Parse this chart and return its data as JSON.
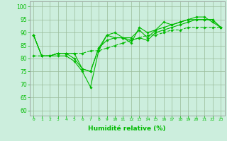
{
  "background_color": "#cceedd",
  "grid_color": "#99bb99",
  "line_color": "#00bb00",
  "xlabel": "Humidité relative (%)",
  "xlabel_fontsize": 6.5,
  "ylabel_ticks": [
    60,
    65,
    70,
    75,
    80,
    85,
    90,
    95,
    100
  ],
  "xlim": [
    -0.5,
    23.5
  ],
  "ylim": [
    58,
    102
  ],
  "xtick_labels": [
    "0",
    "1",
    "2",
    "3",
    "4",
    "5",
    "6",
    "7",
    "8",
    "9",
    "10",
    "11",
    "12",
    "13",
    "14",
    "15",
    "16",
    "17",
    "18",
    "19",
    "20",
    "21",
    "22",
    "23"
  ],
  "curve1_x": [
    0,
    1,
    2,
    3,
    4,
    5,
    6,
    7,
    8,
    9,
    10,
    11,
    12,
    13,
    14,
    15,
    16,
    17,
    18,
    19,
    20,
    21,
    22,
    23
  ],
  "curve1_y": [
    89,
    81,
    81,
    81,
    81,
    79,
    75,
    69,
    83,
    89,
    90,
    88,
    86,
    92,
    90,
    91,
    94,
    93,
    94,
    95,
    96,
    96,
    94,
    92
  ],
  "curve2_x": [
    0,
    1,
    2,
    3,
    4,
    5,
    6,
    7,
    8,
    9,
    10,
    11,
    12,
    13,
    14,
    15,
    16,
    17,
    18,
    19,
    20,
    21,
    22,
    23
  ],
  "curve2_y": [
    89,
    81,
    81,
    82,
    82,
    80,
    76,
    75,
    84,
    89,
    88,
    88,
    88,
    91,
    88,
    91,
    92,
    93,
    94,
    95,
    95,
    95,
    95,
    92
  ],
  "curve3_x": [
    0,
    1,
    2,
    3,
    4,
    5,
    6,
    7,
    8,
    9,
    10,
    11,
    12,
    13,
    14,
    15,
    16,
    17,
    18,
    19,
    20,
    21,
    22,
    23
  ],
  "curve3_y": [
    89,
    81,
    81,
    82,
    82,
    82,
    76,
    75,
    84,
    87,
    88,
    88,
    87,
    88,
    87,
    90,
    91,
    92,
    93,
    94,
    95,
    95,
    95,
    92
  ],
  "curve4_x": [
    0,
    1,
    2,
    3,
    4,
    5,
    6,
    7,
    8,
    9,
    10,
    11,
    12,
    13,
    14,
    15,
    16,
    17,
    18,
    19,
    20,
    21,
    22,
    23
  ],
  "curve4_y": [
    81,
    81,
    81,
    82,
    82,
    82,
    82,
    83,
    83,
    84,
    85,
    86,
    87,
    88,
    89,
    89,
    90,
    91,
    91,
    92,
    92,
    92,
    92,
    92
  ],
  "marker": "D",
  "marker_size": 1.8,
  "linewidth": 0.8
}
